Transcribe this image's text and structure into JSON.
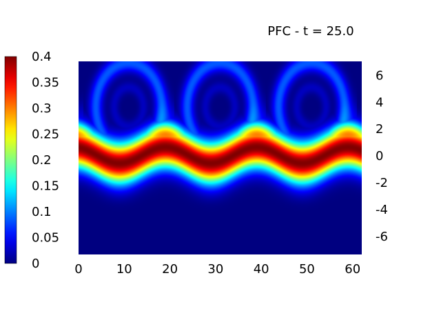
{
  "chart_data": {
    "type": "heatmap",
    "title": "PFC - t = 25.0",
    "xlabel": "",
    "ylabel": "",
    "xlim": [
      0,
      62
    ],
    "ylim": [
      -7.4,
      7
    ],
    "x_ticks": [
      "0",
      "10",
      "20",
      "30",
      "40",
      "50",
      "60"
    ],
    "y_ticks": [
      "6",
      "4",
      "2",
      "0",
      "-2",
      "-4",
      "-6"
    ],
    "colorbar": {
      "range": [
        0,
        0.4
      ],
      "ticks": [
        "0.4",
        "0.35",
        "0.3",
        "0.25",
        "0.2",
        "0.15",
        "0.1",
        "0.05",
        "0"
      ],
      "colormap": "jet"
    },
    "field_description": {
      "band_peak_value": 0.4,
      "band_center_y": 0.0,
      "vortex_count": 3,
      "vortex_centers_x": [
        11,
        31,
        51
      ],
      "vortex_center_y": 3.6,
      "period_x": 20
    }
  }
}
